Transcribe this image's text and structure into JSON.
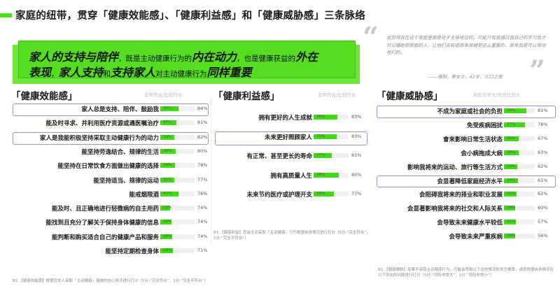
{
  "title": "家庭的纽带，贯穿「健康效能感」、「健康利益感」和「健康威胁感」三条脉络",
  "hero": {
    "line1_a": "家人的支持与陪伴",
    "line1_b": "，既是主动健康行为的",
    "line1_c": "内在动力",
    "line1_d": "，也是健康获益的",
    "line1_e": "外在",
    "line2_a": "表现",
    "line2_b": "，",
    "line2_c": "家人支持",
    "line2_d": "和",
    "line2_e": "支持家人",
    "line2_f": "对主动健康行为",
    "line2_g": "同样重要"
  },
  "quote": {
    "text": "我觉得我在这个家庭里面是处于主导地位的，可能只有我通过我自己的学习我才可以辅助到家庭的人，让他们去知道原来保健是这么重要的，原来我是可以带动他们的。",
    "author": "——佛阳，李女士，42岁，三口之家"
  },
  "colors": {
    "bar": "#3fdc14",
    "highlight_border": "#a48ad8",
    "accent": "#4fdc1a"
  },
  "chart_data": [
    {
      "type": "bar",
      "title": "「健康效能感」",
      "legend": "非常符合/比较符合",
      "categories": [
        "家人总是支持、陪伴、鼓励我",
        "能及时寻求、并利用医疗资源或遇医嘱治疗",
        "家人是我能积极坚持采取主动健康行为的动力",
        "能坚持劳逸结合、规律的生活",
        "能坚持在日常饮食方面做出健康的选择",
        "能坚持适当、规律的运动",
        "能戒烟限酒",
        "能及时、且正确地进行轻微病的自主用药",
        "能找到且充分了解关于保持身体健康的信息",
        "能判断和购买适合自己的健康产品和服务",
        "能坚持定期检查身体"
      ],
      "series": [
        {
          "values": [
            42,
            37,
            33,
            36,
            34,
            32,
            42,
            23,
            26,
            28,
            29
          ],
          "labels": [
            "42%",
            "37%",
            "33%",
            "36%",
            "34%",
            "32%",
            "42%",
            "23%",
            "26%",
            "28%",
            "29%"
          ]
        },
        {
          "values": [
            84,
            81,
            82,
            80,
            78,
            77,
            76,
            74,
            74,
            74,
            71
          ],
          "labels": [
            "84%",
            "81%",
            "82%",
            "80%",
            "78%",
            "77%",
            "76%",
            "74%",
            "74%",
            "74%",
            "71%"
          ]
        }
      ],
      "highlighted": [
        0,
        2
      ],
      "footnote": "B2.【健康效能感】根据您本人采取「主动健康」措施的信心情况进行打分（5分-“完全符合”，1分-“完全不符合”）"
    },
    {
      "type": "bar",
      "title": "「健康利益感」",
      "legend": "非常符合/比较符合",
      "categories": [
        "拥有更好的人生成就",
        "未来更好照顾家人",
        "有正常、甚至更长的寿命",
        "拥有高质量人生",
        "未来节约医疗或护理开支"
      ],
      "series": [
        {
          "values": [
            36,
            35,
            27,
            38,
            30
          ],
          "labels": [
            "36%",
            "35%",
            "27%",
            "38%",
            "30%"
          ]
        },
        {
          "values": [
            83,
            83,
            81,
            80,
            77
          ],
          "labels": [
            "83%",
            "83%",
            "81%",
            "80%",
            "77%"
          ]
        }
      ],
      "highlighted": [
        1
      ],
      "footnote": "B3.【健康利益】您会主动采取「主动健康」行为根据自身情况进行打分（5分-“完全符合”，1分-“完全不符合”）"
    },
    {
      "type": "bar",
      "title": "「健康威胁感」",
      "legend": "风险非常大/风险比较大",
      "categories": [
        "不成为家庭或社会的负担",
        "免受疾病困扰",
        "會来影响日常生活状态",
        "会小病拖成大病",
        "影响我将来的运动、旅行等生活方式",
        "会显著降低家庭经济水平",
        "会阻碍我将来的择业和职业发展",
        "会显著影响我将来的社交和人际关系",
        "会导致未来健康水平较低",
        "会导致未来严重疾病"
      ],
      "series": [
        {
          "values": [
            39,
            37,
            26,
            26,
            23,
            24,
            22,
            20,
            21,
            20
          ],
          "labels": [
            "39%",
            "37%",
            "26%",
            "26%",
            "23%",
            "24%",
            "22%",
            "20%",
            "21%",
            "20%"
          ]
        },
        {
          "values": [
            81,
            78,
            67,
            63,
            62,
            61,
            61,
            60,
            57,
            56
          ],
          "labels": [
            "81%",
            "78%",
            "67%",
            "63%",
            "62%",
            "61%",
            "61%",
            "60%",
            "57%",
            "56%"
          ]
        }
      ],
      "highlighted": [
        0,
        5
      ],
      "footnote": "B1.【健康威胁】如果不采取主动健康行为，可能会导致以下这些情况的发生概率，请您根据自身情况在以下列出的问题进行打分（5分-“风险非常大”，1分-“风险非常小”）"
    }
  ]
}
